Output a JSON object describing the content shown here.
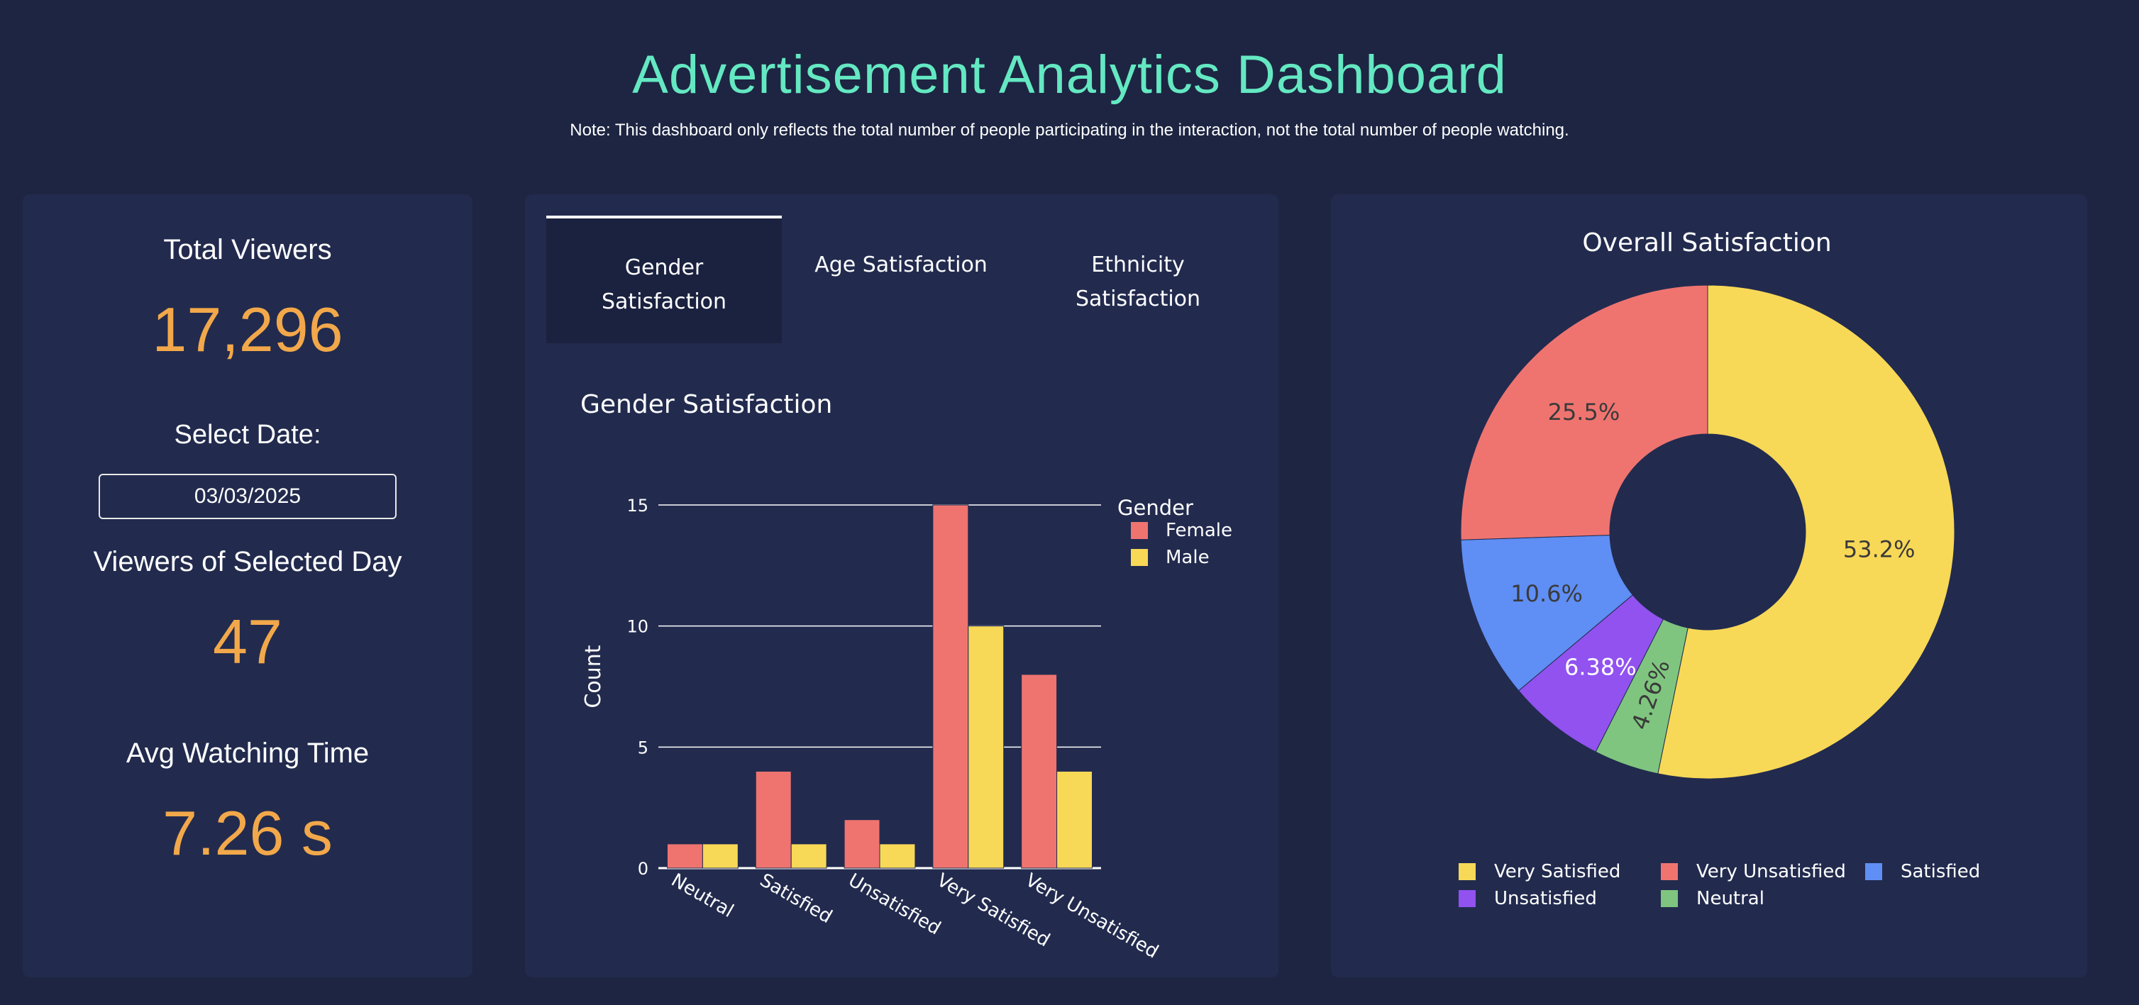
{
  "header": {
    "title": "Advertisement Analytics Dashboard",
    "note": "Note: This dashboard only reflects the total number of people participating in the interaction, not the total number of people watching."
  },
  "stats": {
    "total_viewers_label": "Total Viewers",
    "total_viewers_value": "17,296",
    "select_date_label": "Select Date:",
    "selected_date": "03/03/2025",
    "day_viewers_label": "Viewers of Selected Day",
    "day_viewers_value": "47",
    "avg_watch_label": "Avg Watching Time",
    "avg_watch_value": "7.26 s"
  },
  "tabs": [
    {
      "label": "Gender Satisfaction",
      "active": true
    },
    {
      "label": "Age Satisfaction",
      "active": false
    },
    {
      "label": "Ethnicity Satisfaction",
      "active": false
    }
  ],
  "colors": {
    "female": "#ef7470",
    "male": "#f8d857",
    "very_satisfied": "#f8d857",
    "very_unsatisfied": "#ef7470",
    "satisfied": "#5f8ef4",
    "unsatisfied": "#9152f0",
    "neutral": "#7fc57f",
    "accent": "#64e8c2",
    "value": "#f2a84a"
  },
  "chart_data": [
    {
      "type": "bar",
      "title": "Gender Satisfaction",
      "xlabel": "",
      "ylabel": "Count",
      "categories": [
        "Neutral",
        "Satisfied",
        "Unsatisfied",
        "Very Satisfied",
        "Very Unsatisfied"
      ],
      "series": [
        {
          "name": "Female",
          "values": [
            1,
            4,
            2,
            15,
            8
          ]
        },
        {
          "name": "Male",
          "values": [
            1,
            1,
            1,
            10,
            4
          ]
        }
      ],
      "ylim": [
        0,
        15
      ],
      "yticks": [
        0,
        5,
        10,
        15
      ],
      "legend_title": "Gender",
      "legend_position": "top-right",
      "grid": true
    },
    {
      "type": "pie",
      "title": "Overall Satisfaction",
      "hole": true,
      "slices": [
        {
          "label": "Very Satisfied",
          "value": 53.2,
          "text": "53.2%"
        },
        {
          "label": "Neutral",
          "value": 4.26,
          "text": "4.26%"
        },
        {
          "label": "Unsatisfied",
          "value": 6.38,
          "text": "6.38%"
        },
        {
          "label": "Satisfied",
          "value": 10.6,
          "text": "10.6%"
        },
        {
          "label": "Very Unsatisfied",
          "value": 25.5,
          "text": "25.5%"
        }
      ],
      "legend_order": [
        "Very Satisfied",
        "Very Unsatisfied",
        "Satisfied",
        "Unsatisfied",
        "Neutral"
      ],
      "legend_position": "bottom"
    }
  ]
}
